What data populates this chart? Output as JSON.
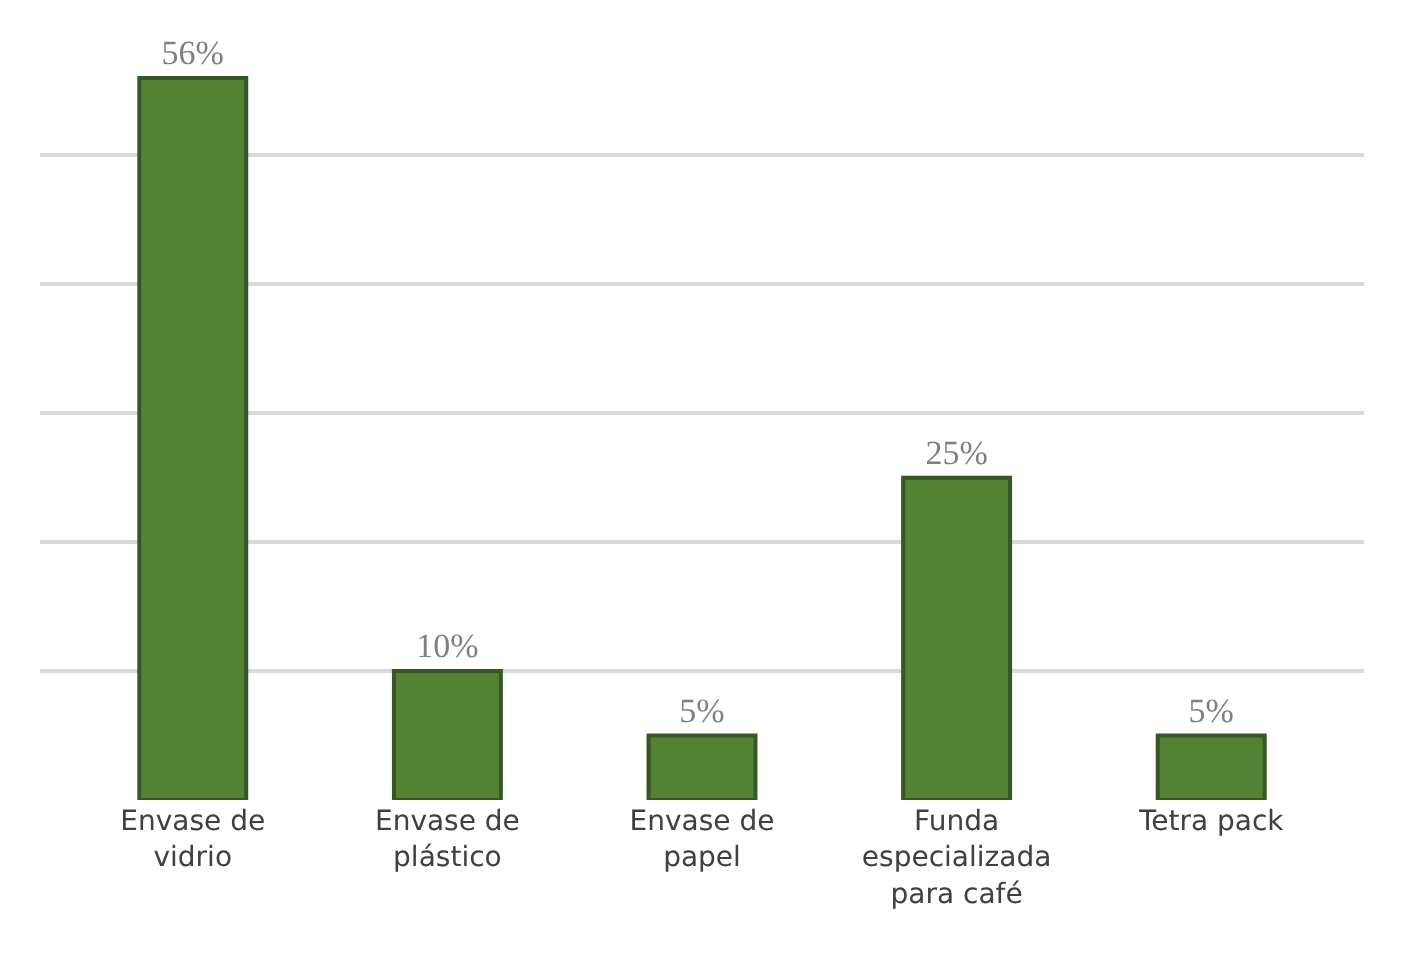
{
  "chart_data": {
    "type": "bar",
    "categories": [
      "Envase de\nvidrio",
      "Envase de\nplástico",
      "Envase de\npapel",
      "Funda\nespecializada\npara café",
      "Tetra pack"
    ],
    "values": [
      56,
      10,
      5,
      25,
      5
    ],
    "value_labels": [
      "56%",
      "10%",
      "5%",
      "25%",
      "5%"
    ],
    "color": "#548235",
    "grid": "y",
    "tick_labels": "x"
  }
}
